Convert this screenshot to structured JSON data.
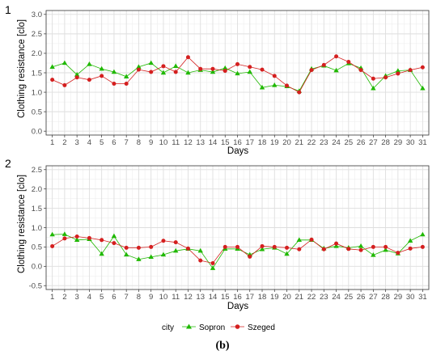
{
  "chart_data": [
    {
      "type": "line",
      "panel_label": "1",
      "xlabel": "Days",
      "ylabel": "Clothing resistance [clo]",
      "ylim": [
        -0.1,
        3.1
      ],
      "yticks": [
        "0.0",
        "0.5",
        "1.0",
        "1.5",
        "2.0",
        "2.5",
        "3.0"
      ],
      "grid": true,
      "x": [
        1,
        2,
        3,
        4,
        5,
        6,
        7,
        8,
        9,
        10,
        11,
        12,
        13,
        14,
        15,
        16,
        17,
        18,
        19,
        20,
        21,
        22,
        23,
        24,
        25,
        26,
        27,
        28,
        29,
        30,
        31
      ],
      "series": [
        {
          "name": "Sopron",
          "values": [
            1.65,
            1.75,
            1.45,
            1.72,
            1.6,
            1.52,
            1.4,
            1.65,
            1.75,
            1.5,
            1.67,
            1.5,
            1.57,
            1.52,
            1.62,
            1.48,
            1.52,
            1.12,
            1.18,
            1.15,
            1.03,
            1.6,
            1.68,
            1.56,
            1.74,
            1.62,
            1.1,
            1.42,
            1.55,
            1.57,
            1.1
          ]
        },
        {
          "name": "Szeged",
          "values": [
            1.32,
            1.18,
            1.38,
            1.32,
            1.42,
            1.22,
            1.22,
            1.58,
            1.52,
            1.67,
            1.52,
            1.9,
            1.6,
            1.6,
            1.55,
            1.72,
            1.65,
            1.58,
            1.42,
            1.17,
            1.0,
            1.57,
            1.7,
            1.92,
            1.78,
            1.57,
            1.35,
            1.38,
            1.48,
            1.57,
            1.64
          ]
        }
      ]
    },
    {
      "type": "line",
      "panel_label": "2",
      "xlabel": "Days",
      "ylabel": "Clothing resistance [clo]",
      "ylim": [
        -0.6,
        2.6
      ],
      "yticks": [
        "-0.5",
        "0.0",
        "0.5",
        "1.0",
        "1.5",
        "2.0",
        "2.5"
      ],
      "grid": true,
      "x": [
        1,
        2,
        3,
        4,
        5,
        6,
        7,
        8,
        9,
        10,
        11,
        12,
        13,
        14,
        15,
        16,
        17,
        18,
        19,
        20,
        21,
        22,
        23,
        24,
        25,
        26,
        27,
        28,
        29,
        30,
        31
      ],
      "series": [
        {
          "name": "Sopron",
          "values": [
            0.82,
            0.83,
            0.68,
            0.7,
            0.32,
            0.78,
            0.3,
            0.18,
            0.24,
            0.3,
            0.4,
            0.45,
            0.4,
            -0.05,
            0.45,
            0.45,
            0.3,
            0.44,
            0.48,
            0.32,
            0.68,
            0.68,
            0.46,
            0.52,
            0.48,
            0.52,
            0.29,
            0.42,
            0.33,
            0.66,
            0.82
          ]
        },
        {
          "name": "Szeged",
          "values": [
            0.52,
            0.72,
            0.77,
            0.73,
            0.68,
            0.6,
            0.48,
            0.48,
            0.5,
            0.66,
            0.62,
            0.46,
            0.15,
            0.08,
            0.5,
            0.5,
            0.25,
            0.52,
            0.5,
            0.48,
            0.44,
            0.69,
            0.44,
            0.59,
            0.45,
            0.42,
            0.5,
            0.5,
            0.35,
            0.46,
            0.5
          ]
        }
      ]
    }
  ],
  "legend": {
    "title": "city",
    "placement": "bottom",
    "items": [
      {
        "name": "Sopron",
        "color": "#1fb800",
        "marker": "triangle"
      },
      {
        "name": "Szeged",
        "color": "#d41f1f",
        "marker": "circle"
      }
    ]
  },
  "caption": "(b)",
  "colors": {
    "sopron": "#1fb800",
    "szeged": "#d41f1f",
    "grid": "#ebebeb",
    "panel_border": "#333333"
  }
}
